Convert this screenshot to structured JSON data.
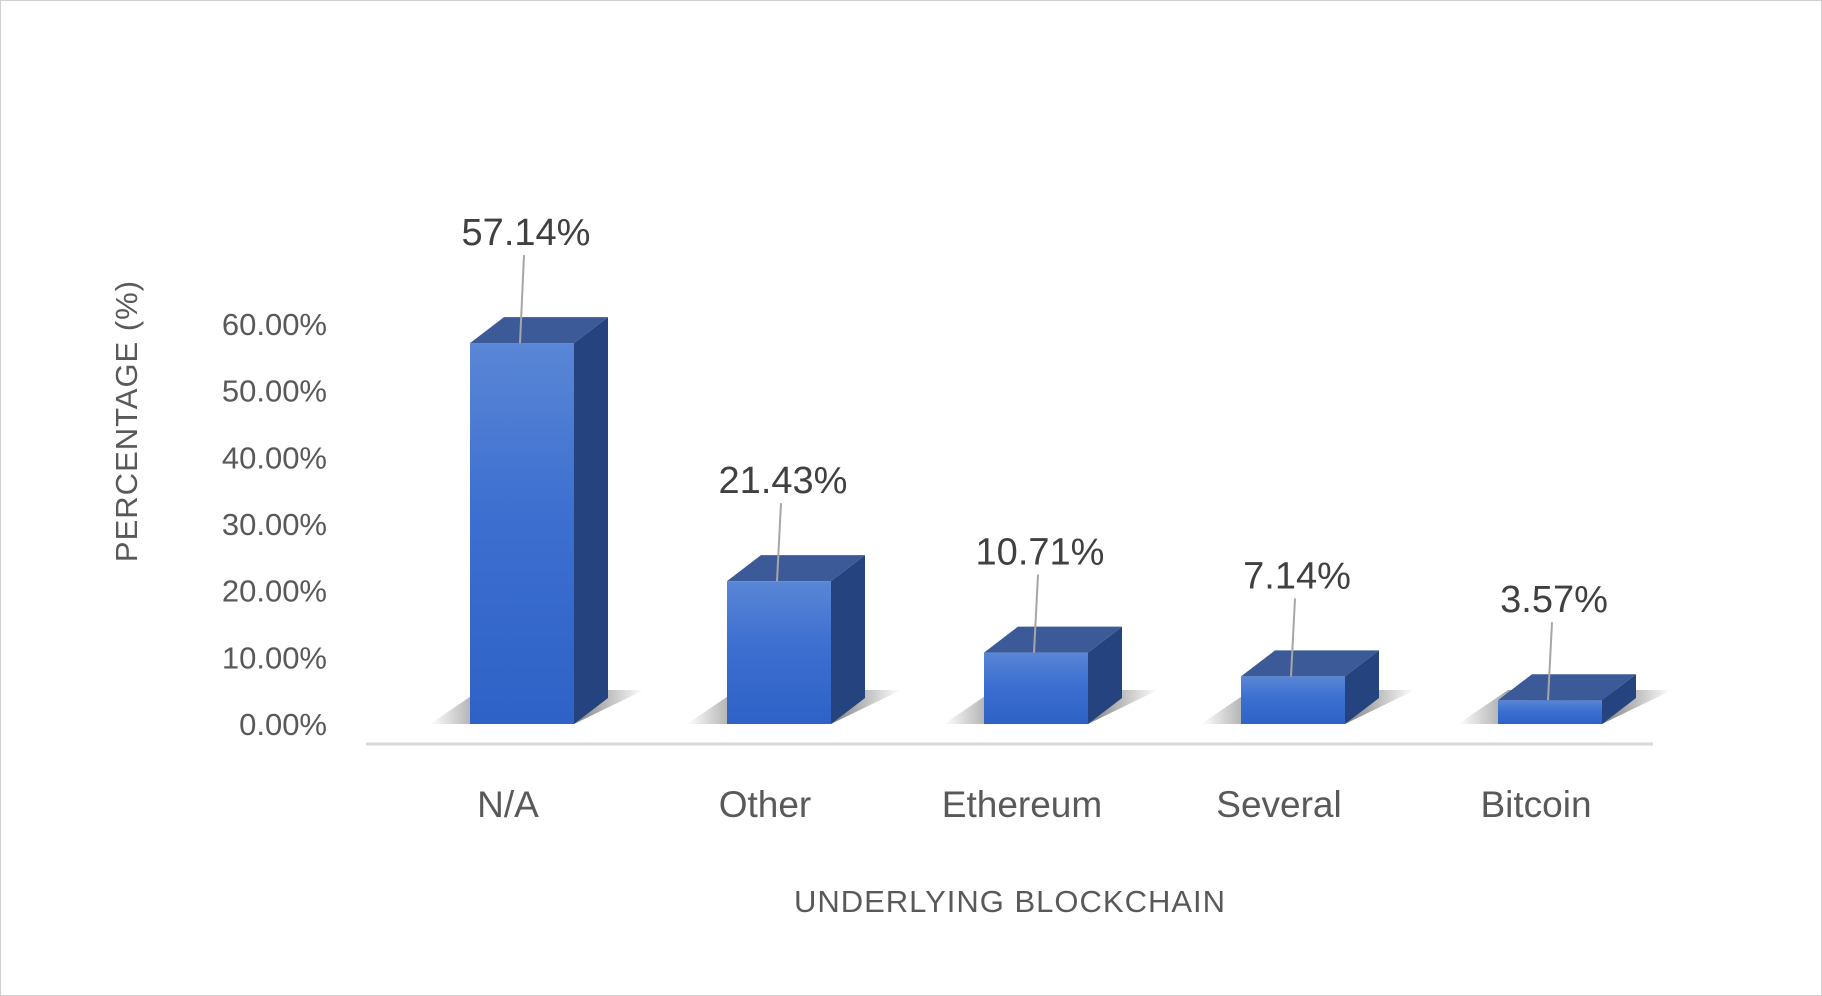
{
  "chart_data": {
    "type": "bar",
    "title": "",
    "xlabel": "UNDERLYING BLOCKCHAIN",
    "ylabel": "PERCENTAGE (%)",
    "categories": [
      "N/A",
      "Other",
      "Ethereum",
      "Several",
      "Bitcoin"
    ],
    "values": [
      57.14,
      21.43,
      10.71,
      7.14,
      3.57
    ],
    "data_labels": [
      "57.14%",
      "21.43%",
      "10.71%",
      "7.14%",
      "3.57%"
    ],
    "ylim": [
      0,
      60
    ],
    "yticks": [
      "0.00%",
      "10.00%",
      "20.00%",
      "30.00%",
      "40.00%",
      "50.00%",
      "60.00%"
    ],
    "grid": false,
    "legend": "none",
    "style": "3d-column",
    "bar_color": "#3a6fcf",
    "bar_side_color": "#24437f",
    "bar_top_color": "#3d5a98"
  }
}
